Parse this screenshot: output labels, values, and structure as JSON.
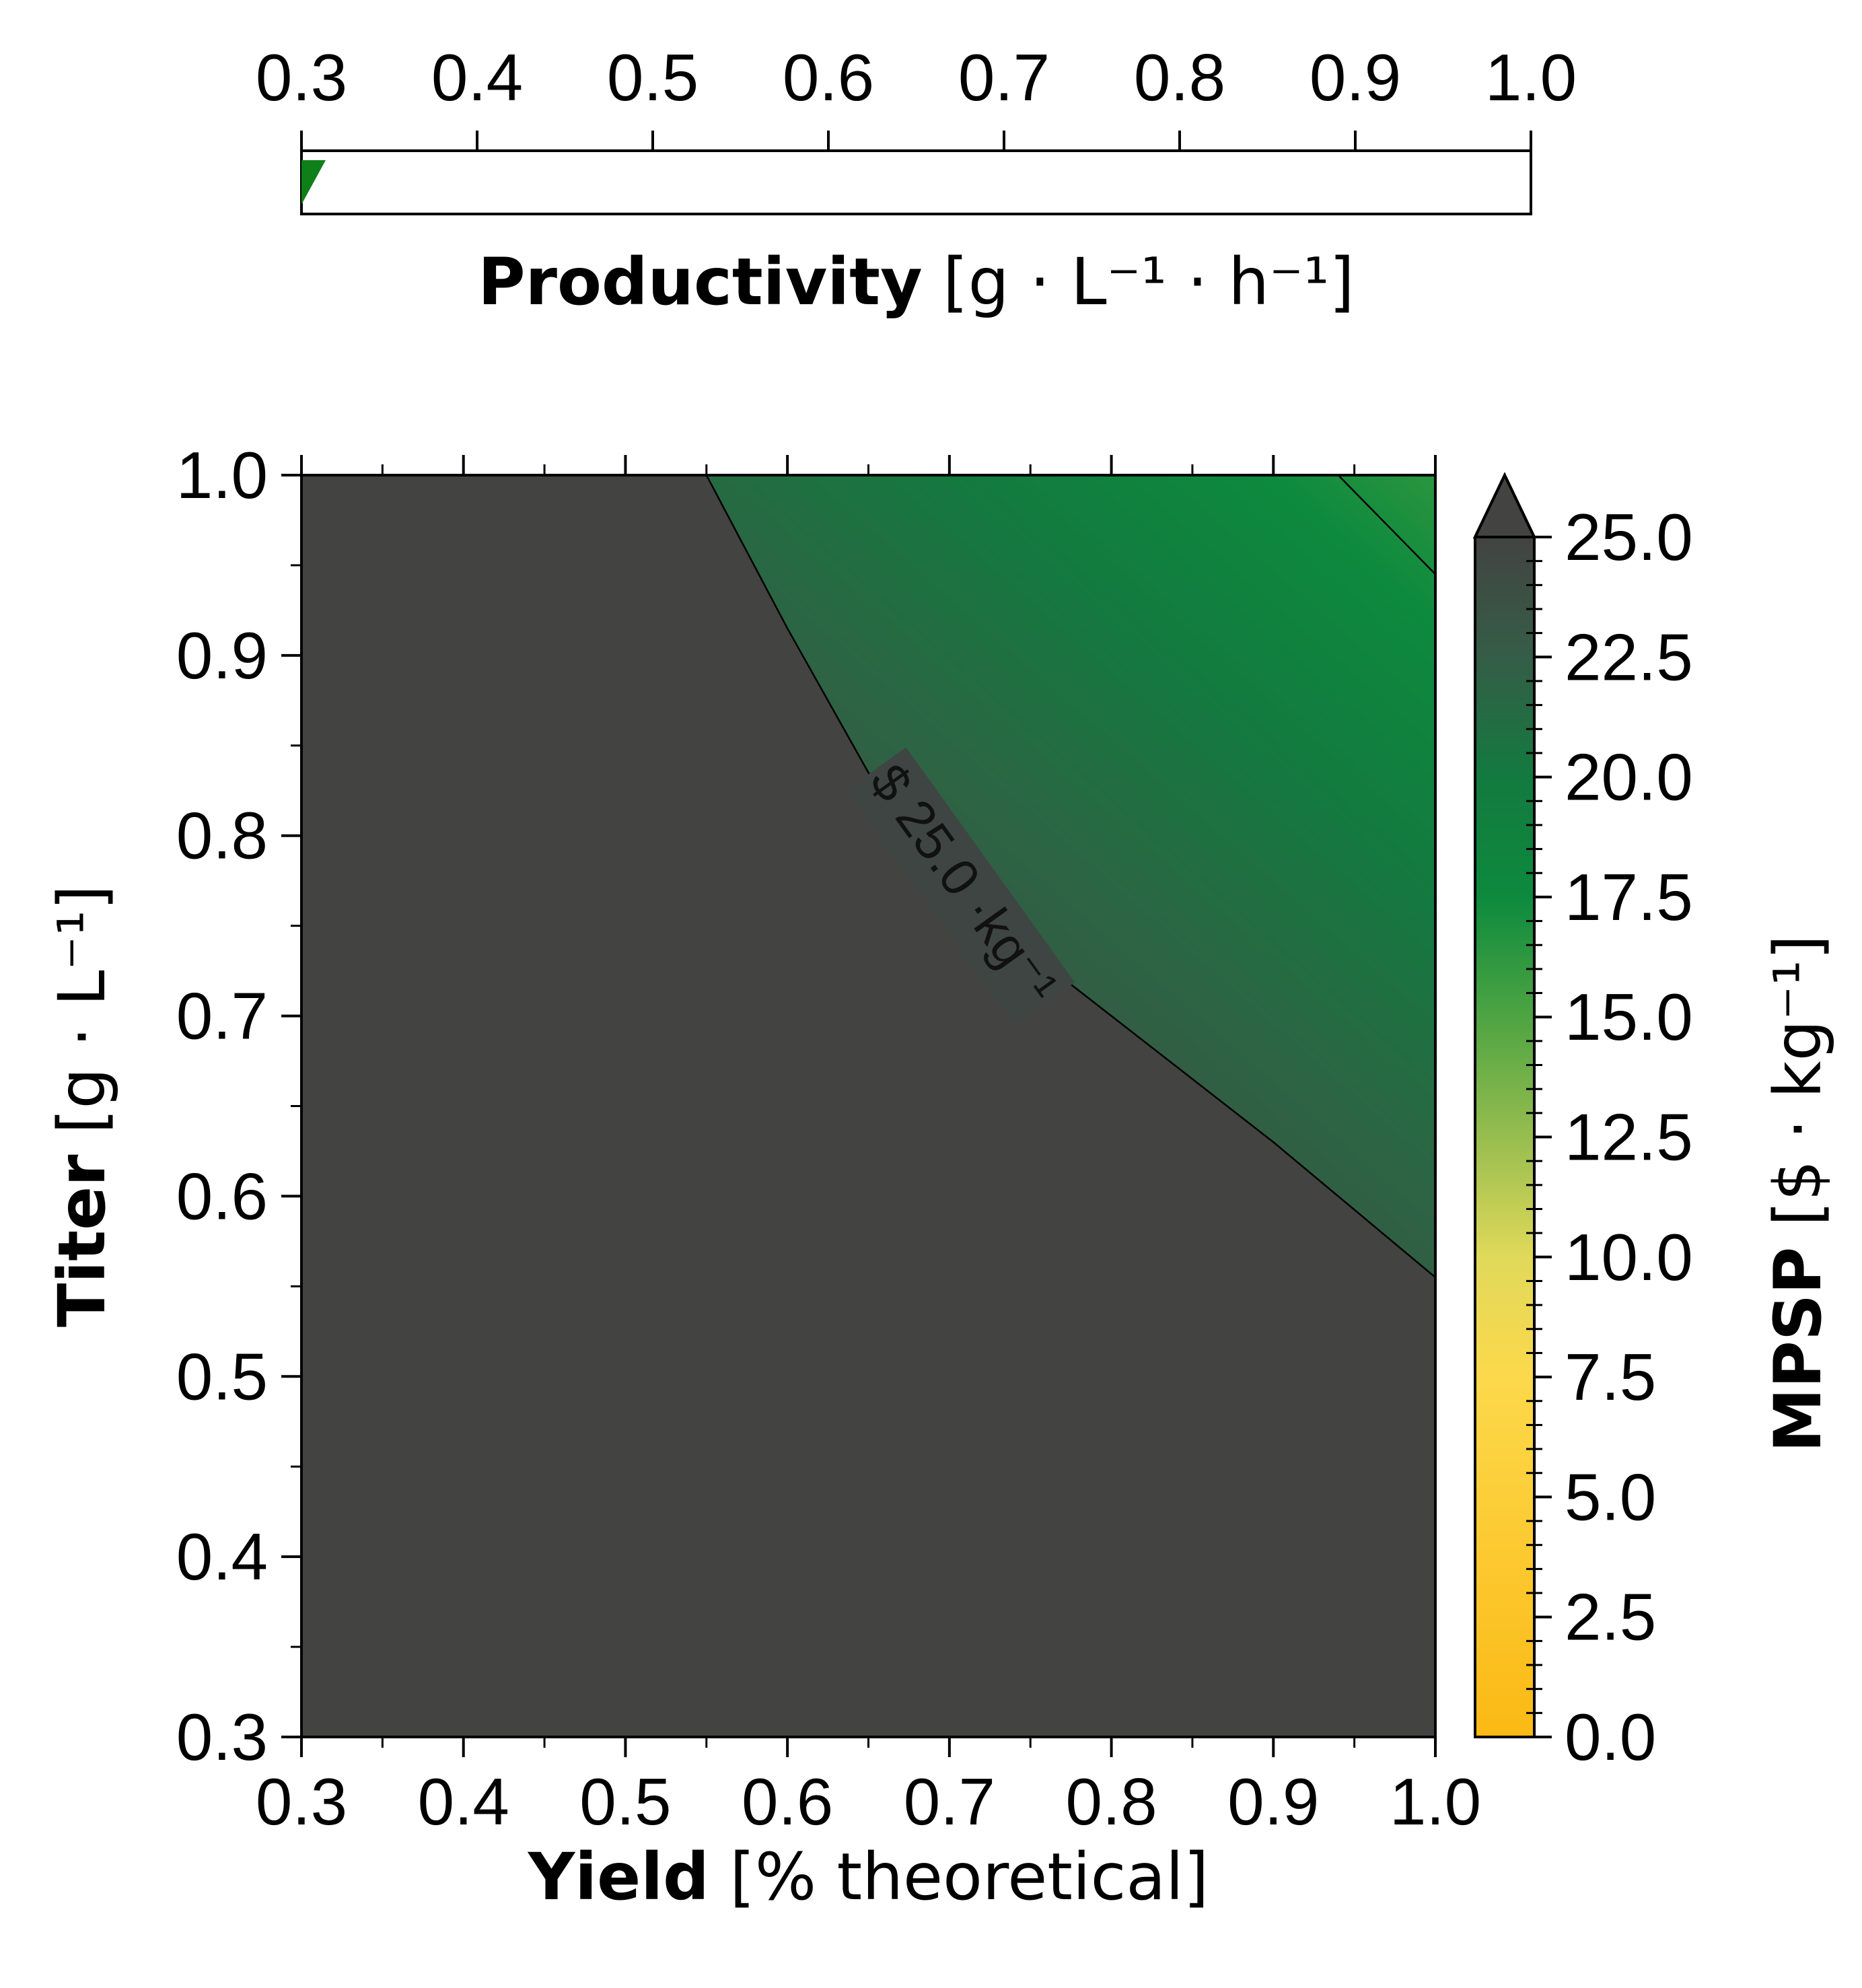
{
  "chart_data": {
    "type": "heatmap",
    "main_plot": {
      "xlabel_bold": "Yield",
      "xlabel_rest": " [% theoretical]",
      "ylabel_bold": "Titer",
      "ylabel_rest": " [g · L⁻¹]",
      "xlim": [
        0.3,
        1.0
      ],
      "ylim": [
        0.3,
        1.0
      ],
      "x_ticks": [
        "0.3",
        "0.4",
        "0.5",
        "0.6",
        "0.7",
        "0.8",
        "0.9",
        "1.0"
      ],
      "y_ticks": [
        "0.3",
        "0.4",
        "0.5",
        "0.6",
        "0.7",
        "0.8",
        "0.9",
        "1.0"
      ],
      "contour_25": [
        [
          0.55,
          1.0
        ],
        [
          0.6,
          0.915
        ],
        [
          0.65,
          0.835
        ],
        [
          0.7,
          0.77
        ],
        [
          0.8,
          0.7
        ],
        [
          0.9,
          0.63
        ],
        [
          1.0,
          0.555
        ]
      ],
      "contour_upper": [
        [
          0.94,
          1.0
        ],
        [
          1.0,
          0.945
        ]
      ],
      "contour_label": "$ 25.0 ·kg⁻¹",
      "contour_label_pos": [
        0.7,
        0.76
      ],
      "dark_fill": "#434342",
      "mpsp_at_corner_1_1": 13.5
    },
    "colorbar": {
      "label_bold": "MPSP",
      "label_rest": " [$ · kg⁻¹]",
      "range": [
        0,
        25
      ],
      "extend": "max",
      "ticks": [
        "0.0",
        "2.5",
        "5.0",
        "7.5",
        "10.0",
        "12.5",
        "15.0",
        "17.5",
        "20.0",
        "22.5",
        "25.0"
      ],
      "color_stops": [
        {
          "value": 0,
          "color": "#fbb914"
        },
        {
          "value": 7.5,
          "color": "#fcd94b"
        },
        {
          "value": 10,
          "color": "#e0d95a"
        },
        {
          "value": 12.5,
          "color": "#97bd4f"
        },
        {
          "value": 15,
          "color": "#4ea442"
        },
        {
          "value": 17.5,
          "color": "#0d8a3e"
        },
        {
          "value": 20,
          "color": "#137a3f"
        },
        {
          "value": 22.5,
          "color": "#355d47"
        },
        {
          "value": 25,
          "color": "#434342"
        }
      ]
    },
    "productivity_bar": {
      "label_bold": "Productivity",
      "label_rest": " [g · L⁻¹ · h⁻¹]",
      "range": [
        0.3,
        1.0
      ],
      "ticks": [
        "0.3",
        "0.4",
        "0.5",
        "0.6",
        "0.7",
        "0.8",
        "0.9",
        "1.0"
      ],
      "marker_color": "#0f7f1a"
    }
  }
}
